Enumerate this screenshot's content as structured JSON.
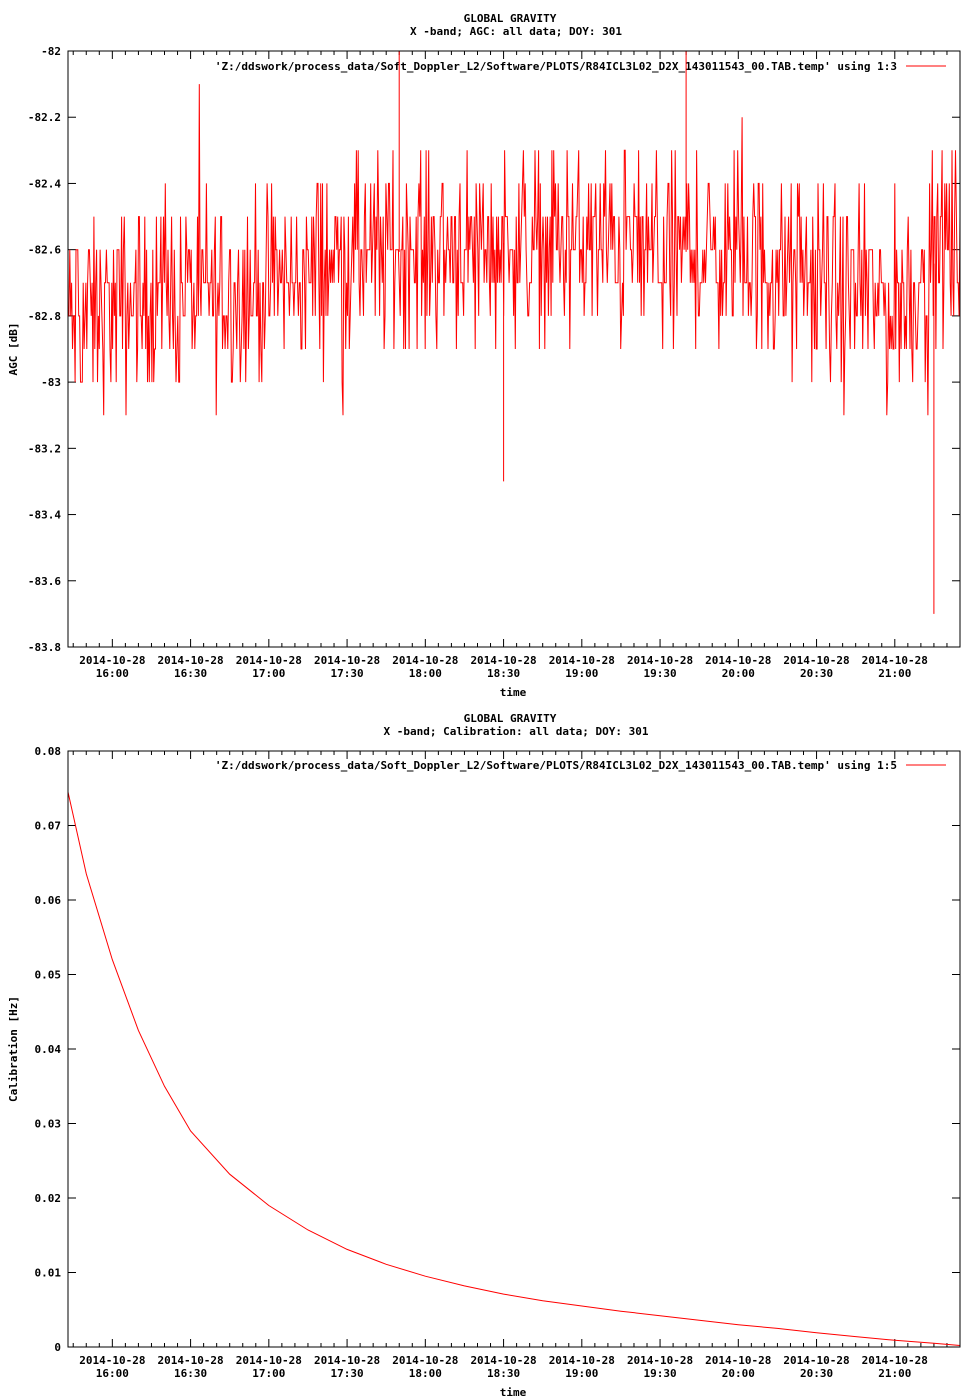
{
  "chart_data": [
    {
      "type": "line",
      "title": "GLOBAL GRAVITY",
      "subtitle": "X -band; AGC: all data; DOY: 301",
      "xlabel": "time",
      "ylabel": "AGC [dB]",
      "ylim": [
        -83.8,
        -82
      ],
      "y_ticks": [
        "-82",
        "-82.2",
        "-82.4",
        "-82.6",
        "-82.8",
        "-83",
        "-83.2",
        "-83.4",
        "-83.6",
        "-83.8"
      ],
      "x_tick_dates": [
        "2014-10-28",
        "2014-10-28",
        "2014-10-28",
        "2014-10-28",
        "2014-10-28",
        "2014-10-28",
        "2014-10-28",
        "2014-10-28",
        "2014-10-28",
        "2014-10-28",
        "2014-10-28"
      ],
      "x_tick_times": [
        "16:00",
        "16:30",
        "17:00",
        "17:30",
        "18:00",
        "18:30",
        "19:00",
        "19:30",
        "20:00",
        "20:30",
        "21:00"
      ],
      "xlim": [
        "15:43",
        "21:25"
      ],
      "grid": false,
      "legend_position": "top-right",
      "series": [
        {
          "name": "'Z:/ddswork/process_data/Soft_Doppler_L2/Software/PLOTS/R84ICL3L02_D2X_143011543_00.TAB.temp' using 1:3",
          "color": "#ff0000",
          "mean_profile": {
            "time": [
              "15:43",
              "16:00",
              "16:30",
              "17:00",
              "17:30",
              "18:00",
              "18:30",
              "19:00",
              "19:30",
              "20:00",
              "20:30",
              "21:00",
              "21:25"
            ],
            "agc": [
              -82.8,
              -82.78,
              -82.72,
              -82.72,
              -82.62,
              -82.6,
              -82.58,
              -82.58,
              -82.6,
              -82.62,
              -82.7,
              -82.78,
              -82.55
            ]
          },
          "min": -83.7,
          "max": -82
        }
      ]
    },
    {
      "type": "line",
      "title": "GLOBAL GRAVITY",
      "subtitle": "X -band; Calibration: all data; DOY: 301",
      "xlabel": "time",
      "ylabel": "Calibration [Hz]",
      "ylim": [
        0,
        0.08
      ],
      "y_ticks": [
        "0",
        "0.01",
        "0.02",
        "0.03",
        "0.04",
        "0.05",
        "0.06",
        "0.07",
        "0.08"
      ],
      "x_tick_dates": [
        "2014-10-28",
        "2014-10-28",
        "2014-10-28",
        "2014-10-28",
        "2014-10-28",
        "2014-10-28",
        "2014-10-28",
        "2014-10-28",
        "2014-10-28",
        "2014-10-28",
        "2014-10-28"
      ],
      "x_tick_times": [
        "16:00",
        "16:30",
        "17:00",
        "17:30",
        "18:00",
        "18:30",
        "19:00",
        "19:30",
        "20:00",
        "20:30",
        "21:00"
      ],
      "xlim": [
        "15:43",
        "21:25"
      ],
      "grid": false,
      "legend_position": "top-right",
      "series": [
        {
          "name": "'Z:/ddswork/process_data/Soft_Doppler_L2/Software/PLOTS/R84ICL3L02_D2X_143011543_00.TAB.temp' using 1:5",
          "color": "#ff0000",
          "x": [
            "15:43",
            "15:50",
            "16:00",
            "16:10",
            "16:20",
            "16:30",
            "16:45",
            "17:00",
            "17:15",
            "17:30",
            "17:45",
            "18:00",
            "18:15",
            "18:30",
            "18:45",
            "19:00",
            "19:15",
            "19:30",
            "19:45",
            "20:00",
            "20:15",
            "20:30",
            "20:45",
            "21:00",
            "21:15",
            "21:25"
          ],
          "y": [
            0.0745,
            0.0635,
            0.052,
            0.0425,
            0.035,
            0.029,
            0.0232,
            0.019,
            0.0157,
            0.0131,
            0.0111,
            0.0095,
            0.0082,
            0.0071,
            0.0062,
            0.0055,
            0.0048,
            0.0042,
            0.0036,
            0.003,
            0.0025,
            0.0019,
            0.0014,
            0.0009,
            0.0005,
            0.0002
          ]
        }
      ]
    }
  ]
}
